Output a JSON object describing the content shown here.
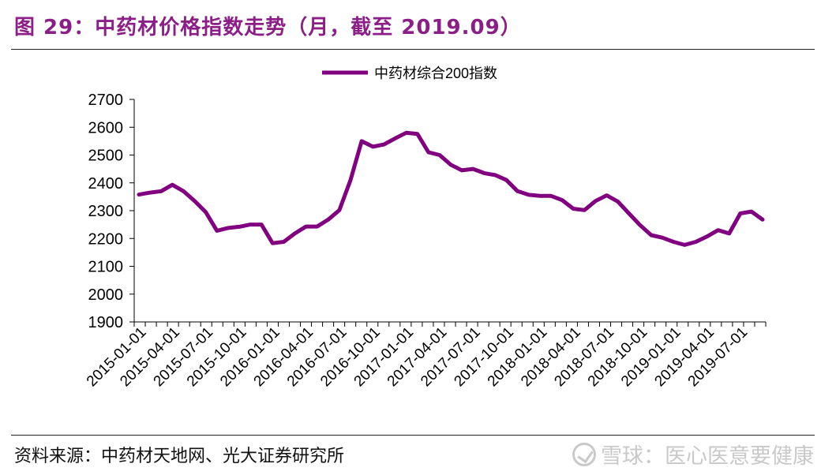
{
  "header": {
    "title": "图 29：中药材价格指数走势（月，截至 2019.09）"
  },
  "footer": {
    "source": "资料来源：中药材天地网、光大证券研究所",
    "watermark": "雪球：医心医意要健康"
  },
  "colors": {
    "title": "#8b1f87",
    "series": "#800080",
    "axis": "#000000"
  },
  "chart_data": {
    "type": "line",
    "title": "",
    "xlabel": "",
    "ylabel": "",
    "ylim": [
      1900,
      2700
    ],
    "yticks": [
      1900,
      2000,
      2100,
      2200,
      2300,
      2400,
      2500,
      2600,
      2700
    ],
    "grid": false,
    "legend": "top-center",
    "xtick_labels": [
      "2015-01-01",
      "2015-04-01",
      "2015-07-01",
      "2015-10-01",
      "2016-01-01",
      "2016-04-01",
      "2016-07-01",
      "2016-10-01",
      "2017-01-01",
      "2017-04-01",
      "2017-07-01",
      "2017-10-01",
      "2018-01-01",
      "2018-04-01",
      "2018-07-01",
      "2018-10-01",
      "2019-01-01",
      "2019-04-01",
      "2019-07-01"
    ],
    "x": [
      "2015-01",
      "2015-02",
      "2015-03",
      "2015-04",
      "2015-05",
      "2015-06",
      "2015-07",
      "2015-08",
      "2015-09",
      "2015-10",
      "2015-11",
      "2015-12",
      "2016-01",
      "2016-02",
      "2016-03",
      "2016-04",
      "2016-05",
      "2016-06",
      "2016-07",
      "2016-08",
      "2016-09",
      "2016-10",
      "2016-11",
      "2016-12",
      "2017-01",
      "2017-02",
      "2017-03",
      "2017-04",
      "2017-05",
      "2017-06",
      "2017-07",
      "2017-08",
      "2017-09",
      "2017-10",
      "2017-11",
      "2017-12",
      "2018-01",
      "2018-02",
      "2018-03",
      "2018-04",
      "2018-05",
      "2018-06",
      "2018-07",
      "2018-08",
      "2018-09",
      "2018-10",
      "2018-11",
      "2018-12",
      "2019-01",
      "2019-02",
      "2019-03",
      "2019-04",
      "2019-05",
      "2019-06",
      "2019-07",
      "2019-08",
      "2019-09"
    ],
    "series": [
      {
        "name": "中药材综合200指数",
        "values": [
          2358,
          2365,
          2370,
          2393,
          2370,
          2335,
          2295,
          2228,
          2238,
          2242,
          2250,
          2250,
          2183,
          2188,
          2218,
          2243,
          2243,
          2268,
          2302,
          2410,
          2550,
          2530,
          2538,
          2560,
          2580,
          2576,
          2510,
          2500,
          2465,
          2445,
          2450,
          2435,
          2428,
          2410,
          2370,
          2357,
          2353,
          2353,
          2338,
          2307,
          2302,
          2335,
          2355,
          2333,
          2290,
          2248,
          2212,
          2203,
          2188,
          2177,
          2188,
          2207,
          2230,
          2218,
          2290,
          2297,
          2268
        ]
      }
    ]
  }
}
